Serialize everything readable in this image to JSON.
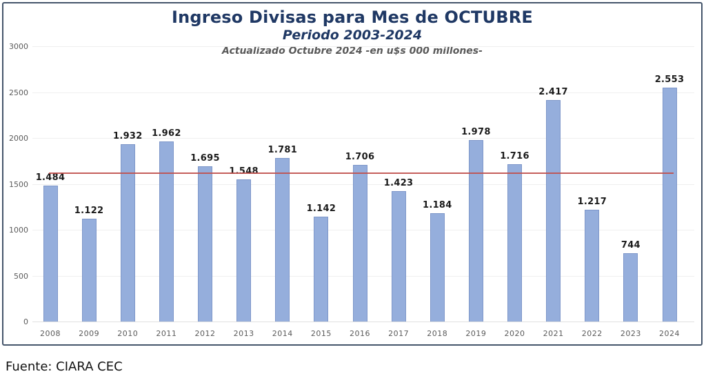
{
  "header": {
    "title": "Ingreso Divisas para Mes de OCTUBRE",
    "subtitle": "Periodo 2003-2024",
    "note": "Actualizado Octubre 2024 -en u$s 000 millones-"
  },
  "footer": {
    "source": "Fuente: CIARA CEC"
  },
  "chart_data": {
    "type": "bar",
    "title": "Ingreso Divisas para Mes de OCTUBRE",
    "subtitle": "Periodo 2003-2024",
    "annotation": "Actualizado Octubre 2024 -en u$s 000 millones-",
    "xlabel": "",
    "ylabel": "",
    "categories": [
      "2008",
      "2009",
      "2010",
      "2011",
      "2012",
      "2013",
      "2014",
      "2015",
      "2016",
      "2017",
      "2018",
      "2019",
      "2020",
      "2021",
      "2022",
      "2023",
      "2024"
    ],
    "values": [
      1484,
      1122,
      1932,
      1962,
      1695,
      1548,
      1781,
      1142,
      1706,
      1423,
      1184,
      1978,
      1716,
      2417,
      1217,
      744,
      2553
    ],
    "value_labels": [
      "1.484",
      "1.122",
      "1.932",
      "1.962",
      "1.695",
      "1.548",
      "1.781",
      "1.142",
      "1.706",
      "1.423",
      "1.184",
      "1.978",
      "1.716",
      "2.417",
      "1.217",
      "744",
      "2.553"
    ],
    "ylim": [
      0,
      3000
    ],
    "yticks": [
      0,
      500,
      1000,
      1500,
      2000,
      2500,
      3000
    ],
    "grid": true,
    "legend": "none",
    "reference_line": {
      "value": 1620,
      "description": "average line across period",
      "color": "#c0504d"
    },
    "colors": {
      "bar_fill": "#95aedc",
      "bar_border": "#7d96c9",
      "title": "#1f3864",
      "note": "#595959",
      "axis_label": "#595959",
      "data_label": "#1a1a1a",
      "gridline": "#efefef",
      "frame_border": "#44546a",
      "reference_line": "#c0504d"
    }
  }
}
